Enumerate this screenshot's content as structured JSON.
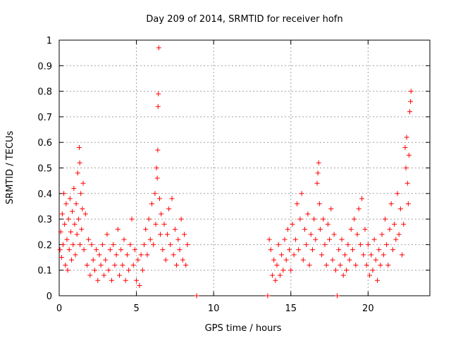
{
  "chart_data": {
    "type": "scatter",
    "title": "Day 209 of 2014, SRMTID for receiver hofn",
    "xlabel": "GPS time / hours",
    "ylabel": "SRMTID / TECUs",
    "xlim": [
      0,
      24
    ],
    "ylim": [
      0,
      1
    ],
    "x_ticks": [
      0,
      5,
      10,
      15,
      20
    ],
    "x_tick_labels": [
      "0",
      "5",
      "10",
      "15",
      "20"
    ],
    "y_ticks": [
      0,
      0.1,
      0.2,
      0.3,
      0.4,
      0.5,
      0.6,
      0.7,
      0.8,
      0.9,
      1
    ],
    "y_tick_labels": [
      "0",
      "0.1",
      "0.2",
      "0.3",
      "0.4",
      "0.5",
      "0.6",
      "0.7",
      "0.8",
      "0.9",
      "1"
    ],
    "grid": true,
    "marker": "+",
    "color": "#ff0000",
    "series": [
      {
        "name": "SRMTID",
        "points": [
          [
            0.05,
            0.18
          ],
          [
            0.1,
            0.25
          ],
          [
            0.15,
            0.15
          ],
          [
            0.2,
            0.32
          ],
          [
            0.25,
            0.2
          ],
          [
            0.3,
            0.4
          ],
          [
            0.35,
            0.28
          ],
          [
            0.4,
            0.12
          ],
          [
            0.45,
            0.36
          ],
          [
            0.5,
            0.22
          ],
          [
            0.55,
            0.1
          ],
          [
            0.6,
            0.3
          ],
          [
            0.65,
            0.18
          ],
          [
            0.7,
            0.38
          ],
          [
            0.75,
            0.25
          ],
          [
            0.8,
            0.14
          ],
          [
            0.85,
            0.33
          ],
          [
            0.9,
            0.2
          ],
          [
            0.95,
            0.42
          ],
          [
            1.0,
            0.28
          ],
          [
            1.05,
            0.16
          ],
          [
            1.1,
            0.36
          ],
          [
            1.15,
            0.24
          ],
          [
            1.2,
            0.48
          ],
          [
            1.25,
            0.3
          ],
          [
            1.3,
            0.58
          ],
          [
            1.33,
            0.52
          ],
          [
            1.35,
            0.2
          ],
          [
            1.4,
            0.4
          ],
          [
            1.45,
            0.26
          ],
          [
            1.5,
            0.34
          ],
          [
            1.55,
            0.44
          ],
          [
            1.6,
            0.18
          ],
          [
            1.7,
            0.32
          ],
          [
            1.8,
            0.12
          ],
          [
            1.9,
            0.22
          ],
          [
            2.0,
            0.08
          ],
          [
            2.1,
            0.2
          ],
          [
            2.2,
            0.14
          ],
          [
            2.3,
            0.1
          ],
          [
            2.4,
            0.18
          ],
          [
            2.5,
            0.06
          ],
          [
            2.6,
            0.16
          ],
          [
            2.7,
            0.12
          ],
          [
            2.8,
            0.2
          ],
          [
            2.9,
            0.08
          ],
          [
            3.0,
            0.14
          ],
          [
            3.1,
            0.24
          ],
          [
            3.2,
            0.1
          ],
          [
            3.3,
            0.18
          ],
          [
            3.4,
            0.06
          ],
          [
            3.5,
            0.2
          ],
          [
            3.6,
            0.12
          ],
          [
            3.7,
            0.16
          ],
          [
            3.8,
            0.26
          ],
          [
            3.9,
            0.08
          ],
          [
            4.0,
            0.18
          ],
          [
            4.1,
            0.12
          ],
          [
            4.2,
            0.22
          ],
          [
            4.3,
            0.06
          ],
          [
            4.4,
            0.16
          ],
          [
            4.5,
            0.1
          ],
          [
            4.6,
            0.2
          ],
          [
            4.7,
            0.3
          ],
          [
            4.8,
            0.12
          ],
          [
            4.9,
            0.18
          ],
          [
            5.0,
            0.06
          ],
          [
            5.1,
            0.14
          ],
          [
            5.2,
            0.04
          ],
          [
            5.3,
            0.16
          ],
          [
            5.4,
            0.1
          ],
          [
            5.5,
            0.2
          ],
          [
            5.6,
            0.26
          ],
          [
            5.7,
            0.16
          ],
          [
            5.8,
            0.3
          ],
          [
            5.9,
            0.22
          ],
          [
            6.0,
            0.36
          ],
          [
            6.1,
            0.2
          ],
          [
            6.2,
            0.4
          ],
          [
            6.25,
            0.28
          ],
          [
            6.3,
            0.5
          ],
          [
            6.35,
            0.46
          ],
          [
            6.38,
            0.57
          ],
          [
            6.4,
            0.74
          ],
          [
            6.42,
            0.79
          ],
          [
            6.45,
            0.97
          ],
          [
            6.5,
            0.38
          ],
          [
            6.55,
            0.24
          ],
          [
            6.6,
            0.32
          ],
          [
            6.7,
            0.18
          ],
          [
            6.8,
            0.28
          ],
          [
            6.9,
            0.14
          ],
          [
            7.0,
            0.24
          ],
          [
            7.1,
            0.34
          ],
          [
            7.2,
            0.2
          ],
          [
            7.3,
            0.38
          ],
          [
            7.4,
            0.16
          ],
          [
            7.5,
            0.26
          ],
          [
            7.6,
            0.12
          ],
          [
            7.7,
            0.22
          ],
          [
            7.8,
            0.18
          ],
          [
            7.9,
            0.3
          ],
          [
            8.0,
            0.14
          ],
          [
            8.1,
            0.24
          ],
          [
            8.2,
            0.12
          ],
          [
            8.3,
            0.2
          ],
          [
            8.9,
            0.0
          ],
          [
            13.5,
            0.0
          ],
          [
            13.6,
            0.22
          ],
          [
            13.7,
            0.18
          ],
          [
            13.8,
            0.08
          ],
          [
            13.9,
            0.14
          ],
          [
            14.0,
            0.06
          ],
          [
            14.1,
            0.12
          ],
          [
            14.2,
            0.2
          ],
          [
            14.3,
            0.08
          ],
          [
            14.4,
            0.16
          ],
          [
            14.5,
            0.1
          ],
          [
            14.6,
            0.22
          ],
          [
            14.7,
            0.14
          ],
          [
            14.8,
            0.26
          ],
          [
            14.9,
            0.18
          ],
          [
            15.0,
            0.1
          ],
          [
            15.1,
            0.28
          ],
          [
            15.2,
            0.16
          ],
          [
            15.3,
            0.22
          ],
          [
            15.4,
            0.36
          ],
          [
            15.5,
            0.18
          ],
          [
            15.6,
            0.3
          ],
          [
            15.7,
            0.4
          ],
          [
            15.8,
            0.14
          ],
          [
            15.9,
            0.26
          ],
          [
            16.0,
            0.2
          ],
          [
            16.1,
            0.32
          ],
          [
            16.2,
            0.12
          ],
          [
            16.3,
            0.24
          ],
          [
            16.4,
            0.18
          ],
          [
            16.5,
            0.3
          ],
          [
            16.6,
            0.22
          ],
          [
            16.7,
            0.44
          ],
          [
            16.75,
            0.48
          ],
          [
            16.8,
            0.52
          ],
          [
            16.85,
            0.36
          ],
          [
            16.9,
            0.26
          ],
          [
            17.0,
            0.16
          ],
          [
            17.1,
            0.3
          ],
          [
            17.2,
            0.2
          ],
          [
            17.3,
            0.12
          ],
          [
            17.4,
            0.28
          ],
          [
            17.5,
            0.22
          ],
          [
            17.6,
            0.34
          ],
          [
            17.7,
            0.14
          ],
          [
            17.8,
            0.24
          ],
          [
            17.9,
            0.1
          ],
          [
            18.0,
            0.0
          ],
          [
            18.1,
            0.18
          ],
          [
            18.2,
            0.12
          ],
          [
            18.3,
            0.22
          ],
          [
            18.4,
            0.08
          ],
          [
            18.5,
            0.16
          ],
          [
            18.6,
            0.1
          ],
          [
            18.7,
            0.2
          ],
          [
            18.8,
            0.14
          ],
          [
            18.9,
            0.26
          ],
          [
            19.0,
            0.18
          ],
          [
            19.1,
            0.3
          ],
          [
            19.2,
            0.12
          ],
          [
            19.3,
            0.24
          ],
          [
            19.4,
            0.34
          ],
          [
            19.5,
            0.2
          ],
          [
            19.6,
            0.38
          ],
          [
            19.7,
            0.16
          ],
          [
            19.8,
            0.26
          ],
          [
            19.9,
            0.12
          ],
          [
            20.0,
            0.2
          ],
          [
            20.1,
            0.08
          ],
          [
            20.2,
            0.16
          ],
          [
            20.3,
            0.1
          ],
          [
            20.4,
            0.22
          ],
          [
            20.5,
            0.14
          ],
          [
            20.6,
            0.06
          ],
          [
            20.7,
            0.18
          ],
          [
            20.8,
            0.12
          ],
          [
            20.9,
            0.24
          ],
          [
            21.0,
            0.16
          ],
          [
            21.1,
            0.3
          ],
          [
            21.2,
            0.2
          ],
          [
            21.3,
            0.12
          ],
          [
            21.4,
            0.26
          ],
          [
            21.5,
            0.36
          ],
          [
            21.6,
            0.18
          ],
          [
            21.7,
            0.28
          ],
          [
            21.8,
            0.22
          ],
          [
            21.9,
            0.4
          ],
          [
            22.0,
            0.24
          ],
          [
            22.1,
            0.34
          ],
          [
            22.2,
            0.16
          ],
          [
            22.3,
            0.28
          ],
          [
            22.4,
            0.58
          ],
          [
            22.45,
            0.5
          ],
          [
            22.5,
            0.62
          ],
          [
            22.55,
            0.44
          ],
          [
            22.6,
            0.36
          ],
          [
            22.65,
            0.55
          ],
          [
            22.7,
            0.72
          ],
          [
            22.75,
            0.76
          ],
          [
            22.78,
            0.8
          ]
        ]
      }
    ]
  }
}
